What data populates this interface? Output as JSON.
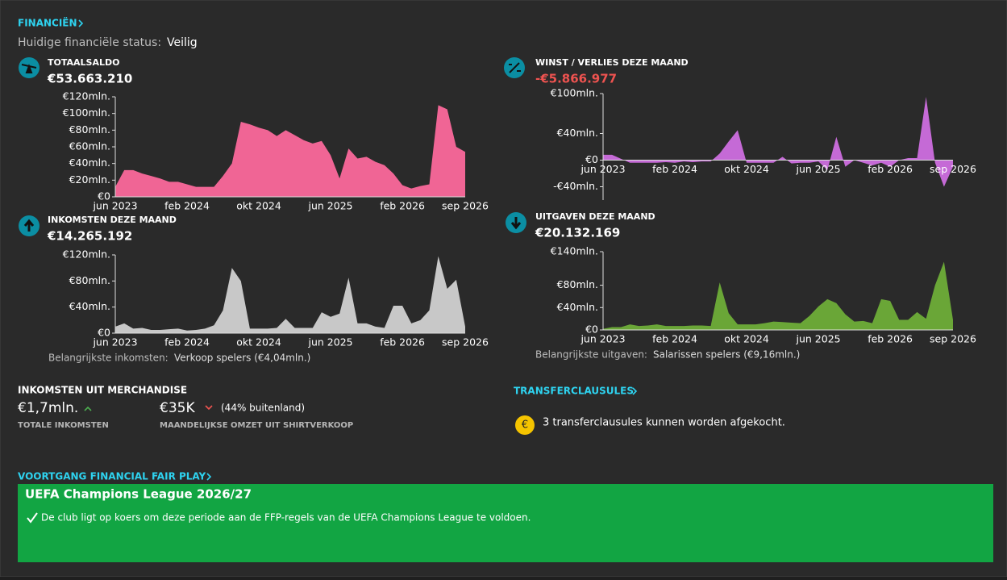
{
  "header": {
    "title": "FINANCIËN",
    "status_label": "Huidige financiële status:",
    "status": "Veilig"
  },
  "chart_data": [
    {
      "type": "area",
      "title": "TOTAALSALDO",
      "summary": "€53.663.210",
      "color": "#f06595",
      "categories": [
        "jun 2023",
        null,
        null,
        null,
        null,
        null,
        null,
        null,
        "feb 2024",
        null,
        null,
        null,
        null,
        null,
        null,
        null,
        "okt 2024",
        null,
        null,
        null,
        null,
        null,
        null,
        null,
        "jun 2025",
        null,
        null,
        null,
        null,
        null,
        null,
        null,
        "feb 2026",
        null,
        null,
        null,
        null,
        null,
        null,
        "sep 2026"
      ],
      "values": [
        12,
        32,
        32,
        28,
        25,
        22,
        18,
        18,
        15,
        12,
        12,
        12,
        25,
        40,
        90,
        87,
        83,
        80,
        73,
        80,
        74,
        68,
        64,
        67,
        50,
        22,
        58,
        46,
        48,
        42,
        38,
        28,
        14,
        10,
        13,
        15,
        110,
        105,
        60,
        54
      ],
      "ylim": [
        0,
        120
      ],
      "yticks": [
        {
          "value": 0,
          "label": "€0"
        },
        {
          "value": 20,
          "label": "€20mln."
        },
        {
          "value": 40,
          "label": "€40mln."
        },
        {
          "value": 60,
          "label": "€60mln."
        },
        {
          "value": 80,
          "label": "€80mln."
        },
        {
          "value": 100,
          "label": "€100mln."
        },
        {
          "value": 120,
          "label": "€120mln."
        }
      ]
    },
    {
      "type": "area",
      "title": "WINST / VERLIES DEZE MAAND",
      "summary": "-€5.866.977",
      "summary_color": "#ef5350",
      "color": "#c56ad6",
      "categories": [
        "jun 2023",
        null,
        null,
        null,
        null,
        null,
        null,
        null,
        "feb 2024",
        null,
        null,
        null,
        null,
        null,
        null,
        null,
        "okt 2024",
        null,
        null,
        null,
        null,
        null,
        null,
        null,
        "jun 2025",
        null,
        null,
        null,
        null,
        null,
        null,
        null,
        "feb 2026",
        null,
        null,
        null,
        null,
        null,
        null,
        "sep 2026"
      ],
      "values": [
        8,
        8,
        2,
        -4,
        -4,
        -4,
        -4,
        -3,
        -4,
        -2,
        -3,
        -2,
        -2,
        10,
        28,
        45,
        -4,
        -4,
        -4,
        -4,
        5,
        -5,
        -4,
        -4,
        -2,
        -15,
        35,
        -10,
        0,
        -4,
        -8,
        -4,
        -10,
        0,
        3,
        3,
        95,
        -4,
        -40,
        -10
      ],
      "ylim": [
        -60,
        100
      ],
      "yticks": [
        {
          "value": -40,
          "label": "-€40mln."
        },
        {
          "value": 0,
          "label": "€0"
        },
        {
          "value": 40,
          "label": "€40mln."
        },
        {
          "value": 100,
          "label": "€100mln."
        }
      ]
    },
    {
      "type": "area",
      "title": "INKOMSTEN DEZE MAAND",
      "summary": "€14.265.192",
      "color": "#c8c8c8",
      "categories": [
        "jun 2023",
        null,
        null,
        null,
        null,
        null,
        null,
        null,
        "feb 2024",
        null,
        null,
        null,
        null,
        null,
        null,
        null,
        "okt 2024",
        null,
        null,
        null,
        null,
        null,
        null,
        null,
        "jun 2025",
        null,
        null,
        null,
        null,
        null,
        null,
        null,
        "feb 2026",
        null,
        null,
        null,
        null,
        null,
        null,
        "sep 2026"
      ],
      "values": [
        10,
        15,
        7,
        8,
        5,
        5,
        6,
        7,
        4,
        5,
        7,
        12,
        35,
        100,
        80,
        7,
        7,
        7,
        8,
        22,
        8,
        8,
        8,
        32,
        25,
        30,
        85,
        15,
        15,
        10,
        8,
        42,
        42,
        15,
        20,
        35,
        118,
        68,
        82,
        10
      ],
      "ylim": [
        0,
        120
      ],
      "yticks": [
        {
          "value": 0,
          "label": "€0"
        },
        {
          "value": 40,
          "label": "€40mln."
        },
        {
          "value": 80,
          "label": "€80mln."
        },
        {
          "value": 120,
          "label": "€120mln."
        }
      ]
    },
    {
      "type": "area",
      "title": "UITGAVEN DEZE MAAND",
      "summary": "€20.132.169",
      "color": "#6aa637",
      "categories": [
        "jun 2023",
        null,
        null,
        null,
        null,
        null,
        null,
        null,
        "feb 2024",
        null,
        null,
        null,
        null,
        null,
        null,
        null,
        "okt 2024",
        null,
        null,
        null,
        null,
        null,
        null,
        null,
        "jun 2025",
        null,
        null,
        null,
        null,
        null,
        null,
        null,
        "feb 2026",
        null,
        null,
        null,
        null,
        null,
        null,
        "sep 2026"
      ],
      "values": [
        2,
        5,
        5,
        10,
        7,
        8,
        10,
        7,
        7,
        7,
        8,
        8,
        7,
        85,
        30,
        10,
        10,
        10,
        12,
        15,
        14,
        13,
        12,
        25,
        42,
        55,
        48,
        28,
        15,
        16,
        12,
        55,
        52,
        18,
        18,
        32,
        20,
        80,
        122,
        18
      ],
      "ylim": [
        0,
        140
      ],
      "yticks": [
        {
          "value": 0,
          "label": "€0"
        },
        {
          "value": 40,
          "label": "€40mln."
        },
        {
          "value": 80,
          "label": "€80mln."
        },
        {
          "value": 140,
          "label": "€140mln."
        }
      ]
    }
  ],
  "notes": {
    "income_label": "Belangrijkste inkomsten:",
    "income": "Verkoop spelers (€4,04mln.)",
    "expense_label": "Belangrijkste uitgaven:",
    "expense": "Salarissen spelers (€9,16mln.)"
  },
  "merchandise": {
    "title": "INKOMSTEN UIT MERCHANDISE",
    "total": "€1,7mln.",
    "total_label": "TOTALE INKOMSTEN",
    "monthly": "€35K",
    "monthly_note": "(44% buitenland)",
    "monthly_label": "MAANDELIJKSE OMZET UIT SHIRTVERKOOP"
  },
  "transfer": {
    "title": "TRANSFERCLAUSULES",
    "icon": "€",
    "text": "3 transferclausules kunnen worden afgekocht."
  },
  "ffp": {
    "title": "VOORTGANG FINANCIAL FAIR PLAY",
    "competition": "UEFA Champions League 2026/27",
    "text": "De club ligt op koers om deze periode aan de FFP-regels van de UEFA Champions League te voldoen."
  }
}
